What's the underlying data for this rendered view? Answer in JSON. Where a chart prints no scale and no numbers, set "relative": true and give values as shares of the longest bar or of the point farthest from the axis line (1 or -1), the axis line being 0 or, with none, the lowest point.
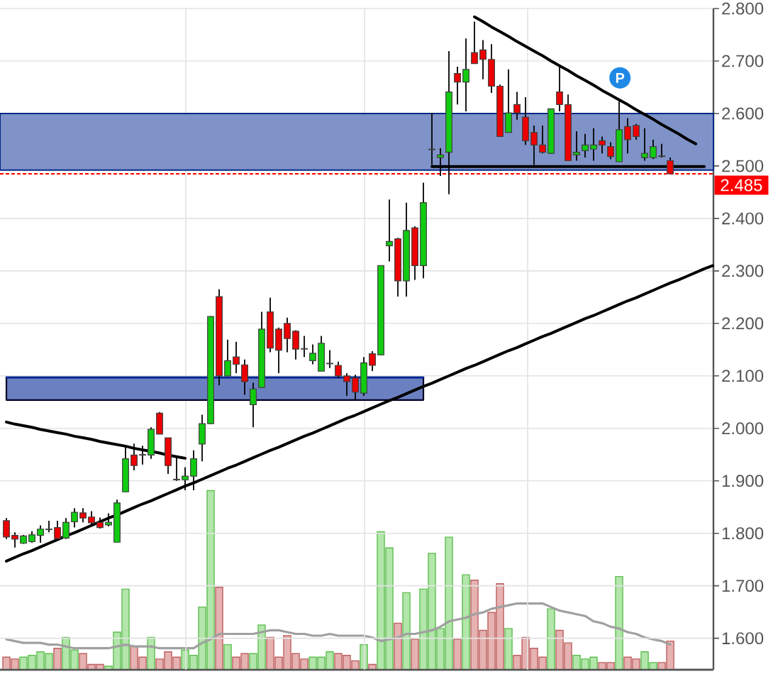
{
  "chart_data": [
    {
      "type": "candlestick",
      "categories": [
        null,
        null,
        null,
        null,
        null,
        null,
        null,
        null,
        null,
        null,
        null,
        null,
        null,
        null,
        null,
        null,
        null,
        null,
        null,
        null,
        null,
        null,
        null,
        null,
        null,
        null,
        null,
        null,
        null,
        null,
        null,
        null,
        null,
        null,
        null,
        null,
        null,
        null,
        null,
        null,
        null,
        null,
        null,
        null,
        null,
        null,
        null,
        null,
        null,
        null,
        null,
        null,
        null,
        null,
        null,
        null,
        null,
        null,
        null,
        null,
        null,
        null,
        null,
        null,
        null,
        null,
        null,
        null,
        null,
        null,
        null,
        null,
        null,
        null,
        null,
        null,
        null,
        null,
        null,
        null,
        null,
        null,
        null,
        null
      ],
      "ohlc": [
        [
          1.824,
          1.829,
          1.789,
          1.793
        ],
        [
          1.796,
          1.802,
          1.773,
          1.789
        ],
        [
          1.781,
          1.797,
          1.78,
          1.795
        ],
        [
          1.784,
          1.804,
          1.782,
          1.797
        ],
        [
          1.796,
          1.815,
          1.782,
          1.808
        ],
        [
          1.807,
          1.824,
          1.802,
          1.808
        ],
        [
          1.811,
          1.824,
          1.789,
          1.79
        ],
        [
          1.791,
          1.829,
          1.789,
          1.821
        ],
        [
          1.822,
          1.848,
          1.811,
          1.84
        ],
        [
          1.839,
          1.848,
          1.821,
          1.829
        ],
        [
          1.831,
          1.842,
          1.817,
          1.82
        ],
        [
          1.821,
          1.83,
          1.809,
          1.811
        ],
        [
          1.816,
          1.838,
          1.813,
          1.821
        ],
        [
          1.783,
          1.864,
          1.783,
          1.858
        ],
        [
          1.879,
          1.967,
          1.878,
          1.942
        ],
        [
          1.949,
          1.971,
          1.92,
          1.929
        ],
        [
          1.95,
          1.967,
          1.931,
          1.949
        ],
        [
          1.949,
          2.002,
          1.942,
          1.998
        ],
        [
          2.029,
          2.031,
          1.989,
          1.989
        ],
        [
          1.982,
          1.982,
          1.913,
          1.929
        ],
        [
          1.903,
          1.944,
          1.9,
          1.902
        ],
        [
          1.902,
          1.926,
          1.882,
          1.909
        ],
        [
          1.909,
          1.958,
          1.882,
          1.942
        ],
        [
          1.97,
          2.026,
          1.937,
          2.009
        ],
        [
          2.009,
          2.214,
          2.008,
          2.213
        ],
        [
          2.251,
          2.265,
          2.082,
          2.1
        ],
        [
          2.1,
          2.169,
          2.1,
          2.129
        ],
        [
          2.136,
          2.165,
          2.105,
          2.122
        ],
        [
          2.121,
          2.131,
          2.064,
          2.089
        ],
        [
          2.045,
          2.087,
          2.002,
          2.075
        ],
        [
          2.078,
          2.222,
          2.078,
          2.189
        ],
        [
          2.222,
          2.249,
          2.145,
          2.153
        ],
        [
          2.189,
          2.192,
          2.105,
          2.149
        ],
        [
          2.2,
          2.211,
          2.145,
          2.171
        ],
        [
          2.185,
          2.187,
          2.131,
          2.151
        ],
        [
          2.152,
          2.176,
          2.136,
          2.151
        ],
        [
          2.129,
          2.16,
          2.122,
          2.143
        ],
        [
          2.109,
          2.176,
          2.109,
          2.162
        ],
        [
          2.123,
          2.149,
          2.115,
          2.124
        ],
        [
          2.12,
          2.127,
          2.096,
          2.1
        ],
        [
          2.1,
          2.105,
          2.062,
          2.089
        ],
        [
          2.096,
          2.102,
          2.053,
          2.069
        ],
        [
          2.067,
          2.136,
          2.062,
          2.125
        ],
        [
          2.142,
          2.147,
          2.109,
          2.12
        ],
        [
          2.14,
          2.31,
          2.14,
          2.31
        ],
        [
          2.348,
          2.436,
          2.318,
          2.356
        ],
        [
          2.361,
          2.363,
          2.251,
          2.281
        ],
        [
          2.281,
          2.43,
          2.251,
          2.377
        ],
        [
          2.382,
          2.385,
          2.283,
          2.31
        ],
        [
          2.31,
          2.468,
          2.286,
          2.43
        ],
        [
          2.531,
          2.601,
          2.502,
          2.532
        ],
        [
          2.516,
          2.534,
          2.481,
          2.521
        ],
        [
          2.526,
          2.719,
          2.446,
          2.641
        ],
        [
          2.676,
          2.689,
          2.617,
          2.66
        ],
        [
          2.66,
          2.743,
          2.604,
          2.684
        ],
        [
          2.716,
          2.775,
          2.695,
          2.695
        ],
        [
          2.721,
          2.74,
          2.665,
          2.703
        ],
        [
          2.703,
          2.732,
          2.639,
          2.652
        ],
        [
          2.652,
          2.655,
          2.556,
          2.556
        ],
        [
          2.564,
          2.684,
          2.564,
          2.601
        ],
        [
          2.617,
          2.641,
          2.588,
          2.601
        ],
        [
          2.593,
          2.631,
          2.54,
          2.548
        ],
        [
          2.564,
          2.577,
          2.502,
          2.54
        ],
        [
          2.54,
          2.577,
          2.524,
          2.526
        ],
        [
          2.524,
          2.609,
          2.524,
          2.609
        ],
        [
          2.641,
          2.689,
          2.604,
          2.617
        ],
        [
          2.617,
          2.636,
          2.51,
          2.51
        ],
        [
          2.521,
          2.566,
          2.51,
          2.526
        ],
        [
          2.529,
          2.561,
          2.516,
          2.54
        ],
        [
          2.532,
          2.572,
          2.51,
          2.54
        ],
        [
          2.548,
          2.556,
          2.524,
          2.54
        ],
        [
          2.537,
          2.545,
          2.513,
          2.518
        ],
        [
          2.508,
          2.623,
          2.508,
          2.569
        ],
        [
          2.575,
          2.591,
          2.524,
          2.55
        ],
        [
          2.577,
          2.58,
          2.55,
          2.556
        ],
        [
          2.516,
          2.572,
          2.51,
          2.524
        ],
        [
          2.516,
          2.55,
          2.513,
          2.537
        ],
        [
          2.519,
          2.542,
          2.516,
          2.518
        ],
        [
          2.51,
          2.516,
          2.485,
          2.485
        ],
        null,
        null,
        null,
        null,
        null
      ],
      "colors": [
        "#ee0000",
        "#ee0000",
        "#11cc11",
        "#11cc11",
        "#11cc11",
        "#11cc11",
        "#ee0000",
        "#11cc11",
        "#11cc11",
        "#ee0000",
        "#ee0000",
        "#ee0000",
        "#11cc11",
        "#11cc11",
        "#11cc11",
        "#ee0000",
        "#ee0000",
        "#11cc11",
        "#ee0000",
        "#ee0000",
        "#ee0000",
        "#11cc11",
        "#11cc11",
        "#11cc11",
        "#11cc11",
        "#ee0000",
        "#11cc11",
        "#ee0000",
        "#ee0000",
        "#11cc11",
        "#11cc11",
        "#ee0000",
        "#ee0000",
        "#ee0000",
        "#ee0000",
        "#ee0000",
        "#11cc11",
        "#11cc11",
        "#11cc11",
        "#ee0000",
        "#ee0000",
        "#ee0000",
        "#11cc11",
        "#ee0000",
        "#11cc11",
        "#11cc11",
        "#ee0000",
        "#11cc11",
        "#ee0000",
        "#11cc11",
        "#11cc11",
        "#11cc11",
        "#11cc11",
        "#ee0000",
        "#11cc11",
        "#ee0000",
        "#ee0000",
        "#ee0000",
        "#ee0000",
        "#11cc11",
        "#ee0000",
        "#ee0000",
        "#ee0000",
        "#ee0000",
        "#11cc11",
        "#ee0000",
        "#ee0000",
        "#11cc11",
        "#11cc11",
        "#11cc11",
        "#ee0000",
        "#ee0000",
        "#11cc11",
        "#ee0000",
        "#ee0000",
        "#11cc11",
        "#11cc11",
        "#ee0000",
        "#ee0000",
        null,
        null,
        null,
        null,
        null
      ],
      "ylim": [
        1.54,
        2.8
      ],
      "yticks": [
        {
          "value": 1.6,
          "label": "1.600"
        },
        {
          "value": 1.7,
          "label": "1.700"
        },
        {
          "value": 1.8,
          "label": "1.800"
        },
        {
          "value": 1.9,
          "label": "1.900"
        },
        {
          "value": 2.0,
          "label": "2.000"
        },
        {
          "value": 2.1,
          "label": "2.100"
        },
        {
          "value": 2.2,
          "label": "2.200"
        },
        {
          "value": 2.3,
          "label": "2.300"
        },
        {
          "value": 2.4,
          "label": "2.400"
        },
        {
          "value": 2.5,
          "label": "2.500"
        },
        {
          "value": 2.6,
          "label": "2.600"
        },
        {
          "value": 2.7,
          "label": "2.700"
        },
        {
          "value": 2.8,
          "label": "2.800"
        }
      ],
      "grid": true,
      "tick_labels": "y",
      "bands": [
        {
          "axis": "y",
          "from": 2.492,
          "to": 2.6,
          "color": "#7f93c8"
        }
      ],
      "ref_lines": [
        {
          "axis": "y",
          "value": 2.485,
          "label": "2.485",
          "color": "#ff0000",
          "line_style": "dashed"
        }
      ],
      "series": [
        {
          "type": "line",
          "color": "#002492",
          "values": [
            2.097,
            2.097,
            2.097,
            2.097,
            2.097,
            2.097,
            2.097,
            2.097,
            2.097,
            2.097,
            2.097,
            2.097,
            2.097,
            2.097,
            2.097,
            2.097,
            2.097,
            2.097,
            2.097,
            2.097,
            2.097,
            2.097,
            2.097,
            2.097,
            2.097,
            2.097,
            2.097,
            2.097,
            2.097,
            2.097,
            2.097,
            2.097,
            2.097,
            2.097,
            2.097,
            2.097,
            2.097,
            2.097,
            2.097,
            2.097,
            2.097,
            2.097,
            2.097,
            2.097,
            2.097,
            2.097,
            2.097,
            2.097,
            2.097,
            2.097,
            null,
            null,
            null,
            null,
            null,
            null,
            null,
            null,
            null,
            null,
            null,
            null,
            null,
            null,
            null,
            null,
            null,
            null,
            null,
            null,
            null,
            null,
            null,
            null,
            null,
            null,
            null,
            null,
            null,
            null,
            null,
            null,
            null,
            null
          ],
          "lower": [
            2.054,
            2.054,
            2.054,
            2.054,
            2.054,
            2.054,
            2.054,
            2.054,
            2.054,
            2.054,
            2.054,
            2.054,
            2.054,
            2.054,
            2.054,
            2.054,
            2.054,
            2.054,
            2.054,
            2.054,
            2.054,
            2.054,
            2.054,
            2.054,
            2.054,
            2.054,
            2.054,
            2.054,
            2.054,
            2.054,
            2.054,
            2.054,
            2.054,
            2.054,
            2.054,
            2.054,
            2.054,
            2.054,
            2.054,
            2.054,
            2.054,
            2.054,
            2.054,
            2.054,
            2.054,
            2.054,
            2.054,
            2.054,
            2.054,
            2.054,
            null,
            null,
            null,
            null,
            null,
            null,
            null,
            null,
            null,
            null,
            null,
            null,
            null,
            null,
            null,
            null,
            null,
            null,
            null,
            null,
            null,
            null,
            null,
            null,
            null,
            null,
            null,
            null,
            null,
            null,
            null,
            null,
            null,
            null
          ],
          "upper": [
            2.097,
            2.097,
            2.097,
            2.097,
            2.097,
            2.097,
            2.097,
            2.097,
            2.097,
            2.097,
            2.097,
            2.097,
            2.097,
            2.097,
            2.097,
            2.097,
            2.097,
            2.097,
            2.097,
            2.097,
            2.097,
            2.097,
            2.097,
            2.097,
            2.097,
            2.097,
            2.097,
            2.097,
            2.097,
            2.097,
            2.097,
            2.097,
            2.097,
            2.097,
            2.097,
            2.097,
            2.097,
            2.097,
            2.097,
            2.097,
            2.097,
            2.097,
            2.097,
            2.097,
            2.097,
            2.097,
            2.097,
            2.097,
            2.097,
            2.097,
            null,
            null,
            null,
            null,
            null,
            null,
            null,
            null,
            null,
            null,
            null,
            null,
            null,
            null,
            null,
            null,
            null,
            null,
            null,
            null,
            null,
            null,
            null,
            null,
            null,
            null,
            null,
            null,
            null,
            null,
            null,
            null,
            null,
            null
          ]
        },
        {
          "type": "line",
          "color": "#000000",
          "values": [
            2.012,
            2.008,
            2.005,
            2.002,
            1.998,
            1.995,
            1.992,
            1.989,
            1.985,
            1.982,
            1.979,
            1.975,
            1.972,
            1.969,
            1.966,
            1.962,
            1.959,
            1.956,
            1.953,
            1.949,
            1.946,
            1.943,
            null,
            null,
            null,
            null,
            null,
            null,
            null,
            null,
            null,
            null,
            null,
            null,
            null,
            null,
            null,
            null,
            null,
            null,
            null,
            null,
            null,
            null,
            null,
            null,
            null,
            null,
            null,
            null,
            null,
            null,
            null,
            null,
            null,
            null,
            null,
            null,
            null,
            null,
            null,
            null,
            null,
            null,
            null,
            null,
            null,
            null,
            null,
            null,
            null,
            null,
            null,
            null,
            null,
            null,
            null,
            null,
            null,
            null,
            null,
            null,
            null,
            null
          ]
        },
        {
          "type": "line",
          "color": "#000000",
          "values": [
            1.747,
            1.754,
            1.761,
            1.767,
            1.774,
            1.781,
            1.788,
            1.795,
            1.801,
            1.808,
            1.815,
            1.822,
            1.829,
            1.835,
            1.842,
            1.849,
            1.856,
            1.862,
            1.869,
            1.876,
            1.883,
            1.89,
            1.896,
            1.903,
            1.91,
            1.917,
            1.924,
            1.93,
            1.937,
            1.944,
            1.951,
            1.958,
            1.964,
            1.971,
            1.978,
            1.985,
            1.991,
            1.998,
            2.005,
            2.012,
            2.019,
            2.025,
            2.032,
            2.039,
            2.046,
            2.053,
            2.059,
            2.066,
            2.073,
            2.08,
            2.086,
            2.093,
            2.1,
            2.107,
            2.114,
            2.12,
            2.127,
            2.134,
            2.141,
            2.148,
            2.154,
            2.161,
            2.168,
            2.175,
            2.181,
            2.188,
            2.195,
            2.202,
            2.209,
            2.215,
            2.222,
            2.229,
            2.236,
            2.243,
            2.249,
            2.256,
            2.263,
            2.27,
            2.277,
            2.283,
            2.29,
            2.297,
            2.304,
            2.31
          ]
        },
        {
          "type": "line",
          "color": "#000000",
          "values": [
            null,
            null,
            null,
            null,
            null,
            null,
            null,
            null,
            null,
            null,
            null,
            null,
            null,
            null,
            null,
            null,
            null,
            null,
            null,
            null,
            null,
            null,
            null,
            null,
            null,
            null,
            null,
            null,
            null,
            null,
            null,
            null,
            null,
            null,
            null,
            null,
            null,
            null,
            null,
            null,
            null,
            null,
            null,
            null,
            null,
            null,
            null,
            null,
            null,
            null,
            null,
            null,
            null,
            null,
            null,
            2.784,
            2.775,
            2.765,
            2.756,
            2.747,
            2.737,
            2.728,
            2.719,
            2.71,
            2.7,
            2.691,
            2.682,
            2.672,
            2.663,
            2.654,
            2.644,
            2.635,
            2.626,
            2.617,
            2.607,
            2.598,
            2.589,
            2.579,
            2.57,
            2.561,
            2.551,
            2.542,
            null,
            null
          ]
        },
        {
          "type": "line",
          "color": "#000000",
          "values": [
            null,
            null,
            null,
            null,
            null,
            null,
            null,
            null,
            null,
            null,
            null,
            null,
            null,
            null,
            null,
            null,
            null,
            null,
            null,
            null,
            null,
            null,
            null,
            null,
            null,
            null,
            null,
            null,
            null,
            null,
            null,
            null,
            null,
            null,
            null,
            null,
            null,
            null,
            null,
            null,
            null,
            null,
            null,
            null,
            null,
            null,
            null,
            null,
            null,
            null,
            2.499,
            2.499,
            2.499,
            2.499,
            2.499,
            2.499,
            2.499,
            2.499,
            2.499,
            2.499,
            2.499,
            2.499,
            2.499,
            2.499,
            2.499,
            2.499,
            2.499,
            2.499,
            2.499,
            2.499,
            2.499,
            2.499,
            2.499,
            2.499,
            2.499,
            2.499,
            2.499,
            2.499,
            2.499,
            2.499,
            2.499,
            2.499,
            2.499,
            null
          ]
        }
      ],
      "annotations": [
        "P"
      ]
    },
    {
      "type": "bar",
      "categories": [
        null,
        null,
        null,
        null,
        null,
        null,
        null,
        null,
        null,
        null,
        null,
        null,
        null,
        null,
        null,
        null,
        null,
        null,
        null,
        null,
        null,
        null,
        null,
        null,
        null,
        null,
        null,
        null,
        null,
        null,
        null,
        null,
        null,
        null,
        null,
        null,
        null,
        null,
        null,
        null,
        null,
        null,
        null,
        null,
        null,
        null,
        null,
        null,
        null,
        null,
        null,
        null,
        null,
        null,
        null,
        null,
        null,
        null,
        null,
        null,
        null,
        null,
        null,
        null,
        null,
        null,
        null,
        null,
        null,
        null,
        null,
        null,
        null,
        null,
        null,
        null,
        null,
        null,
        null,
        null,
        null,
        null,
        null,
        null
      ],
      "relative": true,
      "series": [
        {
          "values": [
            0.07,
            0.06,
            0.07,
            0.08,
            0.1,
            0.09,
            0.12,
            0.18,
            0.11,
            0.09,
            0.03,
            0.03,
            0.02,
            0.21,
            0.45,
            0.13,
            0.07,
            0.18,
            0.06,
            0.1,
            0.07,
            0.11,
            0.08,
            0.35,
            1,
            0.46,
            0.14,
            0.07,
            0.09,
            0.09,
            0.25,
            0.18,
            0.07,
            0.19,
            0.09,
            0.06,
            0.07,
            0.07,
            0.1,
            0.09,
            0.08,
            0.05,
            0.14,
            0.03,
            0.77,
            0.68,
            0.26,
            0.43,
            0.17,
            0.45,
            0.65,
            0.23,
            0.74,
            0.17,
            0.53,
            0.5,
            0.22,
            0.32,
            0.48,
            0.23,
            0.08,
            0.18,
            0.12,
            0.07,
            0.34,
            0.22,
            0.15,
            0.08,
            0.06,
            0.07,
            0.04,
            0.04,
            0.52,
            0.07,
            0.06,
            0.1,
            0.04,
            0.04,
            0.16,
            null,
            null,
            null,
            null,
            null
          ],
          "colors": [
            "#e6b2b2",
            "#e6b2b2",
            "#b2e6aa",
            "#b2e6aa",
            "#b2e6aa",
            "#b2e6aa",
            "#e6b2b2",
            "#b2e6aa",
            "#b2e6aa",
            "#e6b2b2",
            "#e6b2b2",
            "#e6b2b2",
            "#b2e6aa",
            "#b2e6aa",
            "#b2e6aa",
            "#e6b2b2",
            "#e6b2b2",
            "#b2e6aa",
            "#e6b2b2",
            "#e6b2b2",
            "#e6b2b2",
            "#b2e6aa",
            "#b2e6aa",
            "#b2e6aa",
            "#b2e6aa",
            "#e6b2b2",
            "#b2e6aa",
            "#e6b2b2",
            "#e6b2b2",
            "#b2e6aa",
            "#b2e6aa",
            "#e6b2b2",
            "#e6b2b2",
            "#e6b2b2",
            "#e6b2b2",
            "#e6b2b2",
            "#b2e6aa",
            "#b2e6aa",
            "#b2e6aa",
            "#e6b2b2",
            "#e6b2b2",
            "#e6b2b2",
            "#b2e6aa",
            "#e6b2b2",
            "#b2e6aa",
            "#b2e6aa",
            "#e6b2b2",
            "#b2e6aa",
            "#e6b2b2",
            "#b2e6aa",
            "#b2e6aa",
            "#b2e6aa",
            "#b2e6aa",
            "#e6b2b2",
            "#b2e6aa",
            "#e6b2b2",
            "#e6b2b2",
            "#e6b2b2",
            "#e6b2b2",
            "#b2e6aa",
            "#e6b2b2",
            "#e6b2b2",
            "#e6b2b2",
            "#e6b2b2",
            "#b2e6aa",
            "#e6b2b2",
            "#e6b2b2",
            "#b2e6aa",
            "#b2e6aa",
            "#b2e6aa",
            "#e6b2b2",
            "#e6b2b2",
            "#b2e6aa",
            "#e6b2b2",
            "#e6b2b2",
            "#b2e6aa",
            "#b2e6aa",
            "#e6b2b2",
            "#e6b2b2",
            null,
            null,
            null,
            null,
            null
          ]
        },
        {
          "type": "line",
          "color": "#a0a0a0",
          "values": [
            0.17,
            0.16,
            0.15,
            0.15,
            0.15,
            0.14,
            0.14,
            0.13,
            0.12,
            0.12,
            0.12,
            0.12,
            0.12,
            0.13,
            0.14,
            0.13,
            0.13,
            0.13,
            0.12,
            0.12,
            0.12,
            0.12,
            0.12,
            0.15,
            0.17,
            0.2,
            0.2,
            0.2,
            0.2,
            0.2,
            0.21,
            0.22,
            0.22,
            0.21,
            0.2,
            0.2,
            0.19,
            0.19,
            0.2,
            0.19,
            0.19,
            0.19,
            0.19,
            0.18,
            0.16,
            0.17,
            0.18,
            0.2,
            0.2,
            0.21,
            0.22,
            0.24,
            0.27,
            0.28,
            0.29,
            0.31,
            0.32,
            0.34,
            0.35,
            0.36,
            0.37,
            0.37,
            0.37,
            0.37,
            0.35,
            0.33,
            0.32,
            0.31,
            0.3,
            0.27,
            0.26,
            0.24,
            0.23,
            0.21,
            0.2,
            0.18,
            0.17,
            0.16,
            0.14,
            null,
            null,
            null,
            null,
            null
          ]
        }
      ]
    }
  ]
}
